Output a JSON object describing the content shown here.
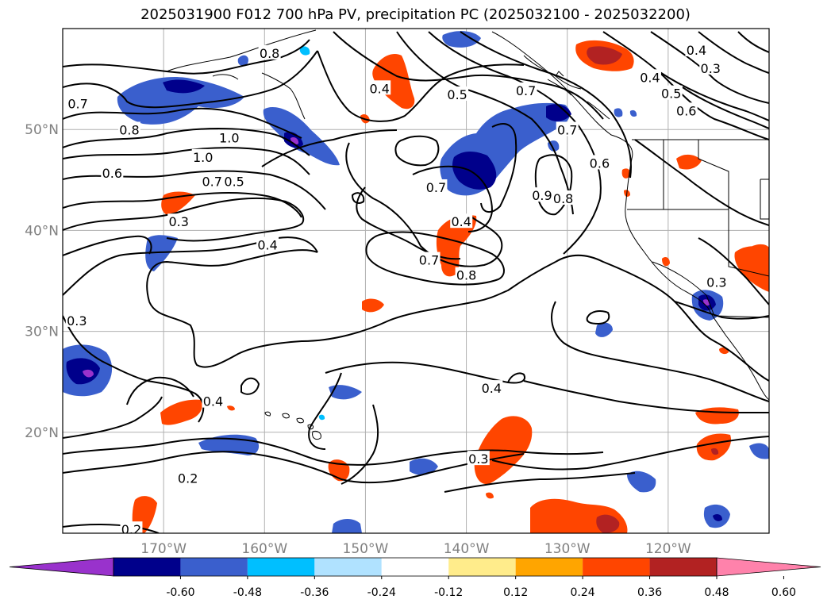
{
  "title": "2025031900 F012 700 hPa PV, precipitation PC (2025032100 - 2025032200)",
  "map": {
    "lon_range": [
      -180,
      -110
    ],
    "lat_range": [
      10,
      60
    ],
    "lat_ticks": [
      {
        "value": 50,
        "label": "50°N"
      },
      {
        "value": 40,
        "label": "40°N"
      },
      {
        "value": 30,
        "label": "30°N"
      },
      {
        "value": 20,
        "label": "20°N"
      }
    ],
    "lon_ticks": [
      {
        "value": -170,
        "label": "170°W"
      },
      {
        "value": -160,
        "label": "160°W"
      },
      {
        "value": -150,
        "label": "150°W"
      },
      {
        "value": -140,
        "label": "140°W"
      },
      {
        "value": -130,
        "label": "130°W"
      },
      {
        "value": -120,
        "label": "120°W"
      }
    ],
    "grid": true,
    "contour_labels": [
      {
        "text": "0.8",
        "lon": -159.5,
        "lat": 57.5
      },
      {
        "text": "0.7",
        "lon": -178.5,
        "lat": 52.5
      },
      {
        "text": "0.8",
        "lon": -173.4,
        "lat": 49.9
      },
      {
        "text": "1.0",
        "lon": -163.5,
        "lat": 49.1
      },
      {
        "text": "1.0",
        "lon": -166.1,
        "lat": 47.2
      },
      {
        "text": "0.6",
        "lon": -175.1,
        "lat": 45.6
      },
      {
        "text": "0.7",
        "lon": -165.2,
        "lat": 44.8
      },
      {
        "text": "0.5",
        "lon": -163.0,
        "lat": 44.8
      },
      {
        "text": "0.3",
        "lon": -168.5,
        "lat": 40.8
      },
      {
        "text": "0.4",
        "lon": -159.7,
        "lat": 38.5
      },
      {
        "text": "0.3",
        "lon": -178.6,
        "lat": 31.0
      },
      {
        "text": "0.4",
        "lon": -148.6,
        "lat": 54.0
      },
      {
        "text": "0.5",
        "lon": -140.9,
        "lat": 53.4
      },
      {
        "text": "0.7",
        "lon": -134.1,
        "lat": 53.8
      },
      {
        "text": "0.7",
        "lon": -143.0,
        "lat": 44.2
      },
      {
        "text": "0.4",
        "lon": -140.5,
        "lat": 40.8
      },
      {
        "text": "0.7",
        "lon": -143.7,
        "lat": 37.0
      },
      {
        "text": "0.8",
        "lon": -140.0,
        "lat": 35.5
      },
      {
        "text": "0.9",
        "lon": -132.5,
        "lat": 43.4
      },
      {
        "text": "0.8",
        "lon": -130.4,
        "lat": 43.1
      },
      {
        "text": "0.6",
        "lon": -126.8,
        "lat": 46.6
      },
      {
        "text": "0.7",
        "lon": -130.0,
        "lat": 49.9
      },
      {
        "text": "0.4",
        "lon": -117.2,
        "lat": 57.8
      },
      {
        "text": "0.3",
        "lon": -115.8,
        "lat": 56.0
      },
      {
        "text": "0.4",
        "lon": -121.8,
        "lat": 55.1
      },
      {
        "text": "0.5",
        "lon": -119.7,
        "lat": 53.5
      },
      {
        "text": "0.6",
        "lon": -118.2,
        "lat": 51.8
      },
      {
        "text": "0.4",
        "lon": -165.1,
        "lat": 23.0
      },
      {
        "text": "0.2",
        "lon": -167.6,
        "lat": 15.4
      },
      {
        "text": "0.2",
        "lon": -173.2,
        "lat": 10.3
      },
      {
        "text": "0.4",
        "lon": -137.5,
        "lat": 24.3
      },
      {
        "text": "0.3",
        "lon": -138.8,
        "lat": 17.3
      },
      {
        "text": "0.3",
        "lon": -115.2,
        "lat": 34.8
      }
    ]
  },
  "colorbar": {
    "ticks": [
      "-0.60",
      "-0.48",
      "-0.36",
      "-0.24",
      "-0.12",
      "0.12",
      "0.24",
      "0.36",
      "0.48",
      "0.60"
    ],
    "colors": [
      "#9932cc",
      "#00008b",
      "#3a5fcd",
      "#00bfff",
      "#b0e2ff",
      "#ffffff",
      "#ffec8b",
      "#ffa500",
      "#ff4500",
      "#b22222",
      "#ff82ab"
    ]
  }
}
